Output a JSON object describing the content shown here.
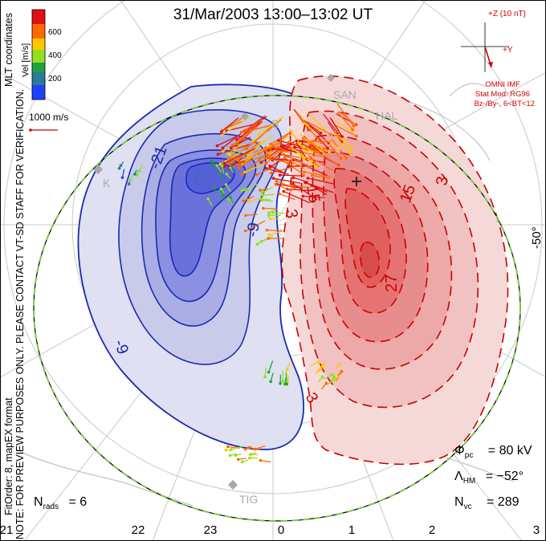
{
  "title": "31/Mar/2003 13:00–13:02 UT",
  "notice": "NOTE: FOR PREVIEW PURPOSES ONLY. PLEASE CONTACT VT-SD STAFF FOR VERIFICATION.",
  "fit_order": "FitOrder: 8, mapEX format",
  "coordinates": "MLT coordinates",
  "color_scale": {
    "label": "Vel [m/s]",
    "ticks": [
      "600",
      "400",
      "200"
    ],
    "colors": [
      "#e01010",
      "#ff6a00",
      "#ffc800",
      "#90e020",
      "#20a040",
      "#2a7a9a",
      "#2040ff"
    ]
  },
  "vector_scale_label": "1000 m/s",
  "lat_label": "-50°",
  "imf": {
    "axis_z": "+Z (10 nT)",
    "axis_y": "+Y",
    "omni": "OMNI IMF",
    "stat_mod": "Stat Mod: RG96",
    "condition": "Bz-/By-, 6<BT<12"
  },
  "stats": {
    "phi_symbol": "Φ",
    "phi_sub": "pc",
    "phi_value": "= 80 kV",
    "lambda_symbol": "Λ",
    "lambda_sub": "HM",
    "lambda_value": "= −52°",
    "nvc_symbol": "N",
    "nvc_sub": "vc",
    "nvc_value": "= 289",
    "nrads_symbol": "N",
    "nrads_sub": "rads",
    "nrads_value": "= 6"
  },
  "mlt_labels": [
    "21",
    "22",
    "23",
    "0",
    "1",
    "2",
    "3"
  ],
  "contour_labels": {
    "neg_21": "-21",
    "neg_9_a": "-9",
    "neg_9_b": "-9",
    "pos_3_a": "3",
    "pos_3_b": "3",
    "pos_3_c": "3",
    "pos_15_a": "15",
    "pos_15_b": "15",
    "pos_27": "27"
  },
  "sites": [
    "SAN",
    "HAL",
    "K",
    "TIG",
    "S"
  ],
  "colors": {
    "negative_cell": "#1a2ab0",
    "positive_cell": "#cc0000",
    "boundary": "#7ac943"
  }
}
